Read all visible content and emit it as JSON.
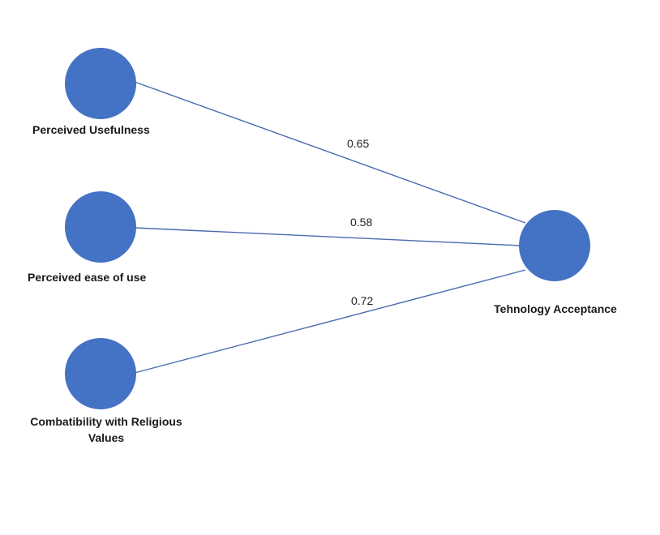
{
  "colors": {
    "node_fill": "#4472C4",
    "edge_stroke": "#4A6BB0"
  },
  "nodes": {
    "perceived_usefulness": {
      "label": "Perceived Usefulness"
    },
    "perceived_ease_of_use": {
      "label": "Perceived ease of use"
    },
    "religious_values": {
      "label_line1": "Combatibility with Religious",
      "label_line2": "Values"
    },
    "technology_acceptance": {
      "label": "Tehnology Acceptance"
    }
  },
  "edges": {
    "usefulness_to_acceptance": {
      "weight": "0.65"
    },
    "ease_to_acceptance": {
      "weight": "0.58"
    },
    "religious_to_acceptance": {
      "weight": "0.72"
    }
  }
}
